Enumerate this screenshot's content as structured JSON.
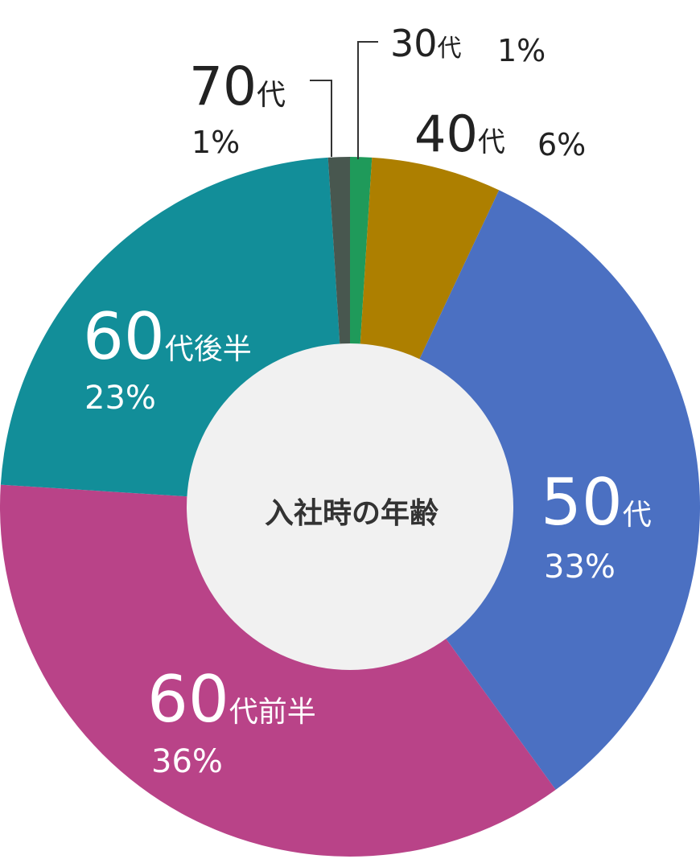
{
  "chart_data": {
    "type": "donut",
    "title": "入社時の年齢",
    "categories": [
      "30代",
      "40代",
      "50代",
      "60代前半",
      "60代後半",
      "70代"
    ],
    "values": [
      1,
      6,
      33,
      36,
      23,
      1
    ],
    "value_labels": [
      "1%",
      "6%",
      "33%",
      "36%",
      "23%",
      "1%"
    ],
    "colors": [
      "#1f9a5a",
      "#ad7f00",
      "#4b70c2",
      "#b94388",
      "#128e99",
      "#48574f"
    ]
  }
}
